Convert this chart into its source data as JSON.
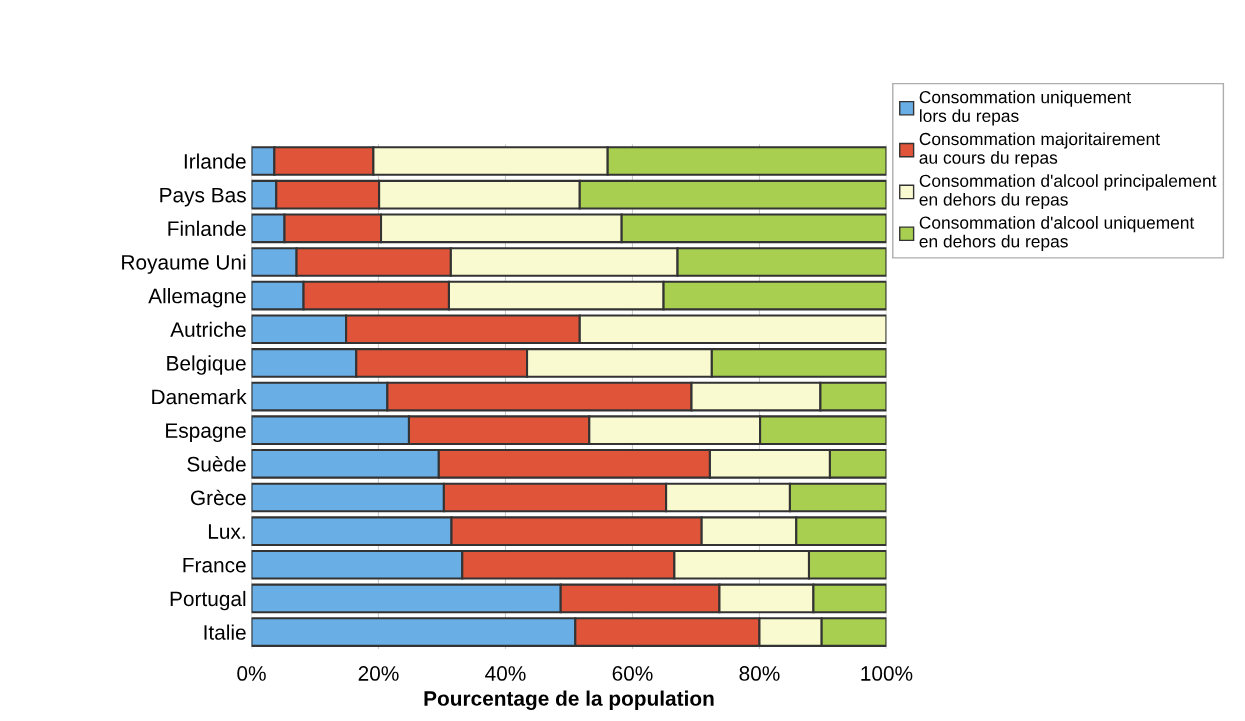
{
  "chart_data": {
    "type": "bar",
    "orientation": "horizontal",
    "stacked": true,
    "xlabel": "Pourcentage de la population",
    "categories": [
      "Irlande",
      "Pays Bas",
      "Finlande",
      "Royaume Uni",
      "Allemagne",
      "Autriche",
      "Belgique",
      "Danemark",
      "Espagne",
      "Suède",
      "Grèce",
      "Lux.",
      "France",
      "Portugal",
      "Italie"
    ],
    "series": [
      {
        "name": "Consommation uniquement lors du repas",
        "color": "#6aaee6",
        "values": [
          3.6,
          3.9,
          5.2,
          7.1,
          8.2,
          14.9,
          16.5,
          21.4,
          24.8,
          29.5,
          30.3,
          31.5,
          33.2,
          48.7,
          51.0
        ]
      },
      {
        "name": "Consommation majoritairement au cours du repas",
        "color": "#e0553a",
        "values": [
          15.6,
          16.2,
          15.2,
          24.3,
          22.9,
          36.8,
          26.9,
          47.9,
          28.4,
          42.7,
          35.0,
          39.4,
          33.4,
          25.0,
          29.0
        ]
      },
      {
        "name": "Consommation d'alcool principalement en dehors du repas",
        "color": "#fafad0",
        "values": [
          36.9,
          31.6,
          37.9,
          35.7,
          33.8,
          48.3,
          29.1,
          20.3,
          26.9,
          18.9,
          19.5,
          14.9,
          21.2,
          14.8,
          9.8
        ]
      },
      {
        "name": "Consommation d'alcool uniquement en dehors du repas",
        "color": "#a8cf50",
        "values": [
          43.9,
          48.3,
          41.7,
          32.9,
          35.1,
          null,
          27.5,
          10.4,
          19.9,
          8.9,
          15.2,
          14.2,
          12.2,
          11.5,
          10.2
        ]
      }
    ],
    "xlim": [
      0,
      100
    ],
    "xticks": [
      {
        "value": 0,
        "label": "0%"
      },
      {
        "value": 20,
        "label": "20%"
      },
      {
        "value": 40,
        "label": "40%"
      },
      {
        "value": 60,
        "label": "60%"
      },
      {
        "value": 80,
        "label": "80%"
      },
      {
        "value": 100,
        "label": "100%"
      }
    ],
    "grid": "x",
    "legend": "top right"
  }
}
